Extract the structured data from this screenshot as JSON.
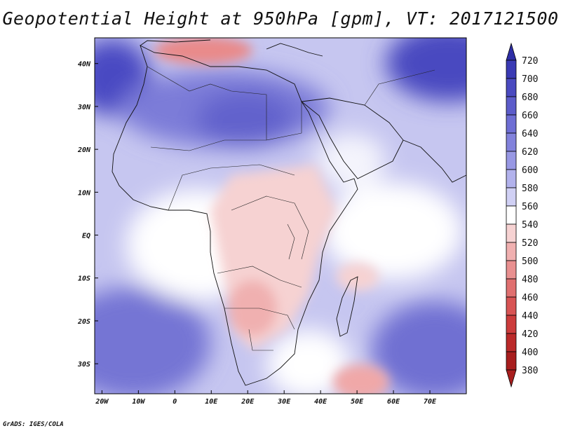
{
  "title": "Geopotential Height at 950hPa [gpm], VT: 2017121500",
  "credit": "GrADS: IGES/COLA",
  "map": {
    "variable": "Geopotential Height",
    "level": "950hPa",
    "units": "gpm",
    "valid_time": "2017121500",
    "lon_range": [
      -22,
      80
    ],
    "lat_range": [
      -37,
      46
    ],
    "lon_ticks": [
      {
        "value": -20,
        "label": "20W"
      },
      {
        "value": -10,
        "label": "10W"
      },
      {
        "value": 0,
        "label": "0"
      },
      {
        "value": 10,
        "label": "10E"
      },
      {
        "value": 20,
        "label": "20E"
      },
      {
        "value": 30,
        "label": "30E"
      },
      {
        "value": 40,
        "label": "40E"
      },
      {
        "value": 50,
        "label": "50E"
      },
      {
        "value": 60,
        "label": "60E"
      },
      {
        "value": 70,
        "label": "70E"
      }
    ],
    "lat_ticks": [
      {
        "value": 40,
        "label": "40N"
      },
      {
        "value": 30,
        "label": "30N"
      },
      {
        "value": 20,
        "label": "20N"
      },
      {
        "value": 10,
        "label": "10N"
      },
      {
        "value": 0,
        "label": "EQ"
      },
      {
        "value": -10,
        "label": "10S"
      },
      {
        "value": -20,
        "label": "20S"
      },
      {
        "value": -30,
        "label": "30S"
      }
    ]
  },
  "colorbar": {
    "levels": [
      720,
      700,
      680,
      660,
      640,
      620,
      600,
      580,
      560,
      540,
      520,
      500,
      480,
      460,
      440,
      420,
      400,
      380
    ],
    "colors": [
      "#2e2ea6",
      "#3a3ab4",
      "#4a4ac0",
      "#5c5cca",
      "#6e6ed4",
      "#8282dc",
      "#9898e4",
      "#b2b2ec",
      "#d0d0f4",
      "#ffffff",
      "#f6d2d2",
      "#f0b0b0",
      "#e99090",
      "#e07070",
      "#d85454",
      "#cc3c3c",
      "#bb2a2a",
      "#a81e1e"
    ]
  }
}
